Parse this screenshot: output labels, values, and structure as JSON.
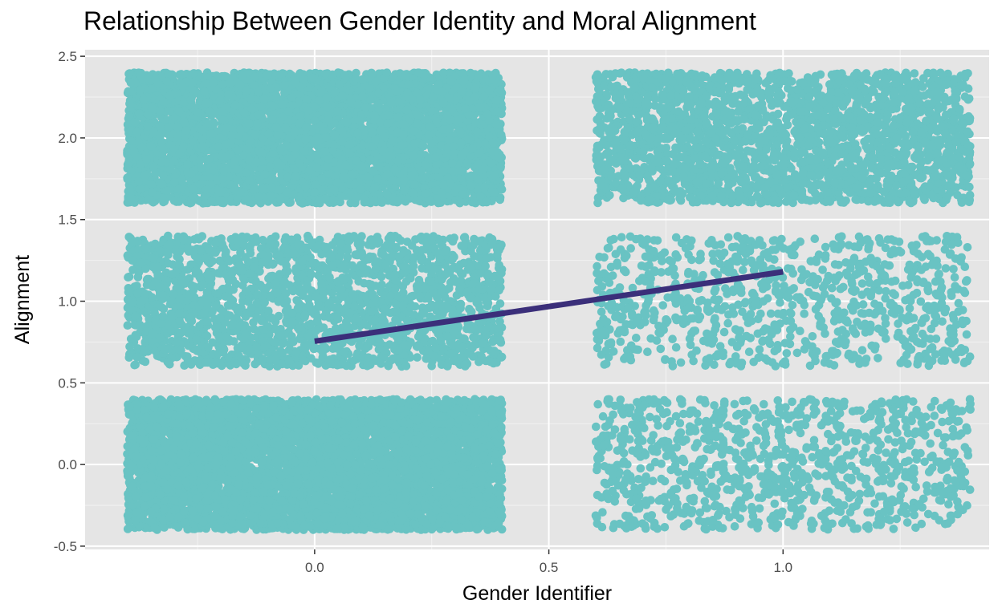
{
  "chart_data": {
    "type": "scatter",
    "title": "Relationship Between Gender Identity and Moral Alignment",
    "xlabel": "Gender Identifier",
    "ylabel": "Alignment",
    "xlim": [
      -0.49,
      1.44
    ],
    "ylim": [
      -0.52,
      2.54
    ],
    "x_ticks": [
      0.0,
      0.5,
      1.0
    ],
    "x_tick_labels": [
      "0.0",
      "0.5",
      "1.0"
    ],
    "y_ticks": [
      -0.5,
      0.0,
      0.5,
      1.0,
      1.5,
      2.0,
      2.5
    ],
    "y_tick_labels": [
      "-0.5",
      "0.0",
      "0.5",
      "1.0",
      "1.5",
      "2.0",
      "2.5"
    ],
    "grid": true,
    "jitter": {
      "x": 0.4,
      "y": 0.4
    },
    "point_color": "#69c3c3",
    "line_color": "#3b2f7a",
    "panel_color": "#e5e5e5",
    "groups": [
      {
        "x": 0,
        "y": 0,
        "n": 6000
      },
      {
        "x": 0,
        "y": 1,
        "n": 2200
      },
      {
        "x": 0,
        "y": 2,
        "n": 5200
      },
      {
        "x": 1,
        "y": 0,
        "n": 1000
      },
      {
        "x": 1,
        "y": 1,
        "n": 900
      },
      {
        "x": 1,
        "y": 2,
        "n": 2600
      }
    ],
    "regression_line": {
      "x": [
        0,
        1
      ],
      "y": [
        0.755,
        1.18
      ]
    }
  }
}
